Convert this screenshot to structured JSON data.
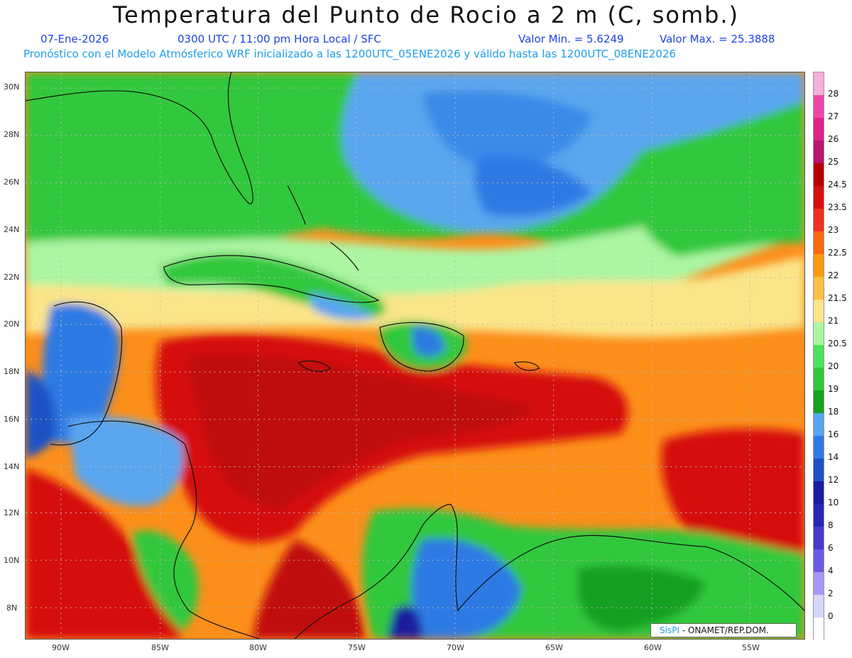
{
  "header": {
    "title": "Temperatura del Punto de Rocio a 2 m (C, somb.)",
    "date": "07-Ene-2026",
    "time": "0300 UTC / 11:00 pm Hora Local / SFC",
    "min_value": "Valor Min. = 5.6249",
    "max_value": "Valor Max. = 25.3888",
    "model_line": "Pronóstico con el Modelo Atmósferico WRF inicializado a las 1200UTC_05ENE2026 y válido hasta las 1200UTC_08ENE2026"
  },
  "axes": {
    "lat_labels": [
      "30N",
      "28N",
      "26N",
      "24N",
      "22N",
      "20N",
      "18N",
      "16N",
      "14N",
      "12N",
      "10N",
      "8N"
    ],
    "lon_labels": [
      "90W",
      "85W",
      "80W",
      "75W",
      "70W",
      "65W",
      "60W",
      "55W"
    ]
  },
  "legend": {
    "labels": [
      "28",
      "27",
      "26",
      "25",
      "24.5",
      "23.5",
      "23",
      "22.5",
      "22",
      "21.5",
      "21",
      "20.5",
      "20",
      "19",
      "18",
      "16",
      "14",
      "12",
      "10",
      "8",
      "6",
      "4",
      "2",
      "0"
    ],
    "colors": [
      "#f4b0d8",
      "#f045a8",
      "#e0218a",
      "#b71470",
      "#b80000",
      "#d51010",
      "#f03020",
      "#f86a12",
      "#fb9a12",
      "#fcc048",
      "#fbe589",
      "#acf5a2",
      "#4ce05c",
      "#33c83c",
      "#14a020",
      "#5aa6ee",
      "#2e7ae4",
      "#1a52c4",
      "#1c1aa0",
      "#2a26b0",
      "#4a38c8",
      "#6c5ce4",
      "#a898f4",
      "#d6d6f8",
      "#ffffff"
    ]
  },
  "credit": {
    "brand": "SisPI",
    "text": "- ONAMET/REP.DOM."
  }
}
